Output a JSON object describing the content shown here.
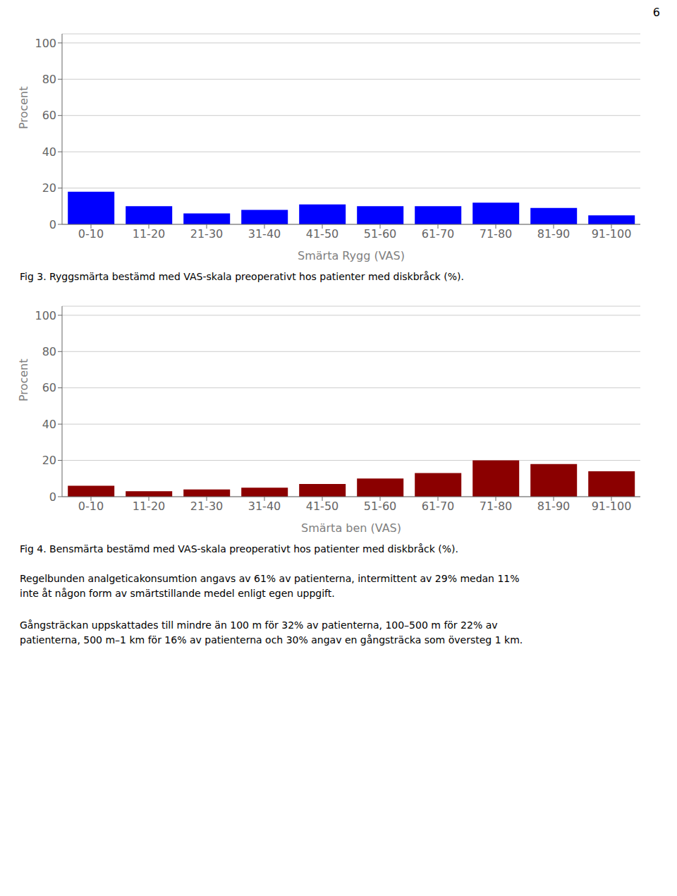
{
  "chart_data": [
    {
      "type": "bar",
      "categories": [
        "0-10",
        "11-20",
        "21-30",
        "31-40",
        "41-50",
        "51-60",
        "61-70",
        "71-80",
        "81-90",
        "91-100"
      ],
      "values": [
        18,
        10,
        6,
        8,
        11,
        10,
        10,
        12,
        9,
        5
      ],
      "color": "#0000FF",
      "ylabel": "Procent",
      "xlabel": "Smärta Rygg (VAS)",
      "ylim": [
        0,
        105
      ],
      "yticks": [
        0,
        20,
        40,
        60,
        80,
        100
      ],
      "grid": true,
      "annotations": [
        "Fig 3. Ryggsmärta bestämd med VAS-skala preoperativt hos patienter med diskbråck (%)."
      ]
    },
    {
      "type": "bar",
      "categories": [
        "0-10",
        "11-20",
        "21-30",
        "31-40",
        "41-50",
        "51-60",
        "61-70",
        "71-80",
        "81-90",
        "91-100"
      ],
      "values": [
        6,
        3,
        4,
        5,
        7,
        10,
        13,
        20,
        18,
        14
      ],
      "color": "#8B0000",
      "ylabel": "Procent",
      "xlabel": "Smärta ben (VAS)",
      "ylim": [
        0,
        105
      ],
      "yticks": [
        0,
        20,
        40,
        60,
        80,
        100
      ],
      "grid": true,
      "annotations": [
        "Fig 4. Bensmärta bestämd med VAS-skala preoperativt hos patienter med diskbråck (%)."
      ]
    }
  ],
  "annotations": [
    "6",
    "Regelbunden analgeticakonsumtion angavs av 61% av patienterna, intermittent av 29% medan 11%",
    "inte åt någon form av smärtstillande medel enligt egen uppgift.",
    "Gångsträckan uppskattades till mindre än 100 m för 32% av patienterna, 100–500 m för 22% av",
    "patienterna, 500 m–1 km för 16% av patienterna och 30% angav en gångsträcka som översteg 1 km."
  ]
}
